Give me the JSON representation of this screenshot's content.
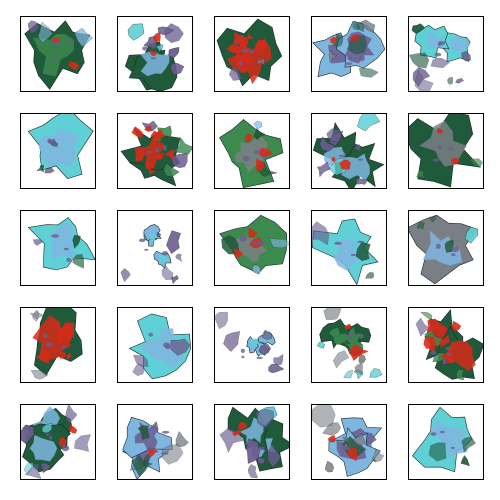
{
  "grid": {
    "rows": 5,
    "cols": 5,
    "tile_border_color": "#000000",
    "background": "#ffffff"
  },
  "palette": {
    "dark_green": "#1f5a3a",
    "green": "#3c8a4e",
    "teal": "#5fd0d6",
    "sky_blue": "#7fb6e0",
    "purple": "#6a5c8e",
    "gray": "#7a7f85",
    "red": "#d62a1a",
    "white": "#ffffff"
  },
  "tiles": [
    {
      "kind": "green-blob"
    },
    {
      "kind": "green-blue-splash"
    },
    {
      "kind": "red-green-blob"
    },
    {
      "kind": "blue-splash"
    },
    {
      "kind": "teal-scatter"
    },
    {
      "kind": "teal-blob"
    },
    {
      "kind": "red-green-splash"
    },
    {
      "kind": "green-gray-blob"
    },
    {
      "kind": "green-blue-splash"
    },
    {
      "kind": "dark-green-blob"
    },
    {
      "kind": "teal-blob"
    },
    {
      "kind": "sparse-blue"
    },
    {
      "kind": "green-gray-blob"
    },
    {
      "kind": "teal-blob"
    },
    {
      "kind": "blue-gray-blob"
    },
    {
      "kind": "red-green-blob"
    },
    {
      "kind": "teal-blob"
    },
    {
      "kind": "sparse-blue"
    },
    {
      "kind": "green-ring"
    },
    {
      "kind": "red-green-splash"
    },
    {
      "kind": "green-blue-splash"
    },
    {
      "kind": "blue-splash"
    },
    {
      "kind": "green-blue-splash"
    },
    {
      "kind": "blue-splash"
    },
    {
      "kind": "teal-blob"
    }
  ]
}
